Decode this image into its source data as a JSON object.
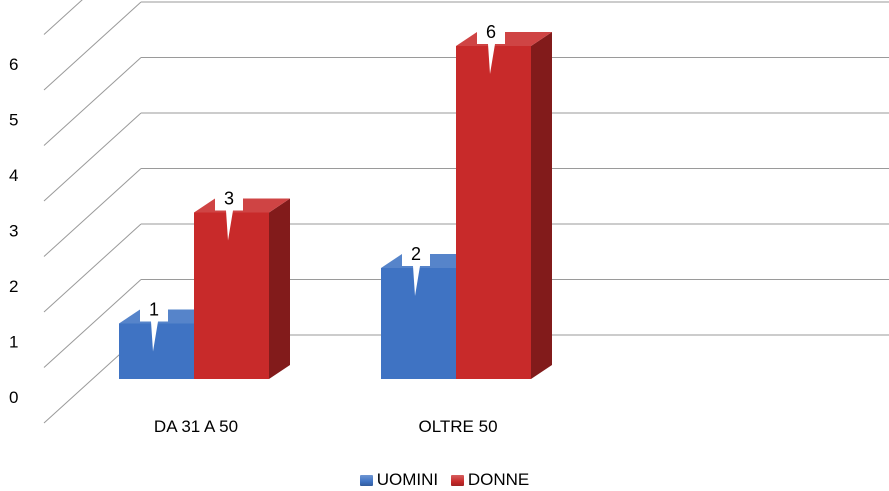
{
  "chart_data": {
    "type": "bar",
    "title": "",
    "xlabel": "",
    "ylabel": "",
    "categories": [
      "DA 31 A 50",
      "OLTRE 50"
    ],
    "series": [
      {
        "name": "UOMINI",
        "values": [
          1,
          2
        ],
        "color": "#3f73c3"
      },
      {
        "name": "DONNE",
        "values": [
          3,
          6
        ],
        "color": "#c82a2a"
      }
    ],
    "ylim": [
      0,
      6
    ],
    "yticks": [
      0,
      1,
      2,
      3,
      4,
      5,
      6
    ],
    "grid": true,
    "legend_position": "bottom",
    "three_d": true
  }
}
